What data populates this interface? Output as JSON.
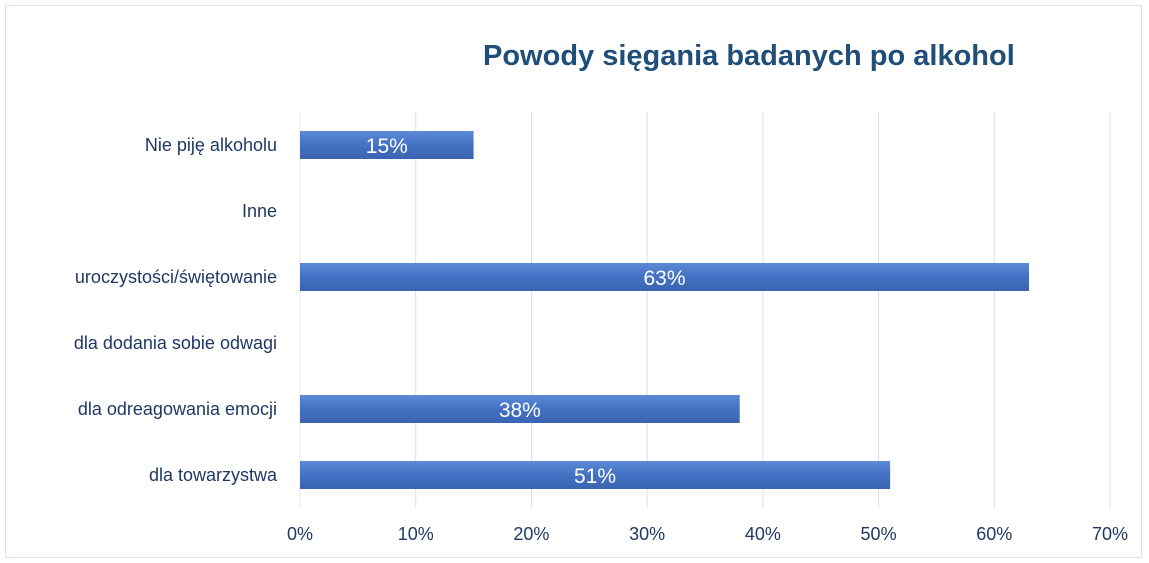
{
  "chart_data": {
    "type": "bar",
    "orientation": "horizontal",
    "title": "Powody sięgania badanych po alkohol",
    "categories": [
      "Nie piję alkoholu",
      "Inne",
      "uroczystości/świętowanie",
      "dla dodania sobie odwagi",
      "dla odreagowania emocji",
      "dla towarzystwa"
    ],
    "values": [
      15,
      0,
      63,
      0,
      38,
      51
    ],
    "data_labels": [
      "15%",
      "",
      "63%",
      "",
      "38%",
      "51%"
    ],
    "xlabel": "",
    "ylabel": "",
    "xlim": [
      0,
      70
    ],
    "x_ticks": [
      "0%",
      "10%",
      "20%",
      "30%",
      "40%",
      "50%",
      "60%",
      "70%"
    ],
    "grid": true,
    "legend": "none",
    "colors": {
      "bar": "#4472c4",
      "title": "#1f4e79",
      "grid": "#d6e0ec",
      "text": "#1f3864"
    }
  }
}
